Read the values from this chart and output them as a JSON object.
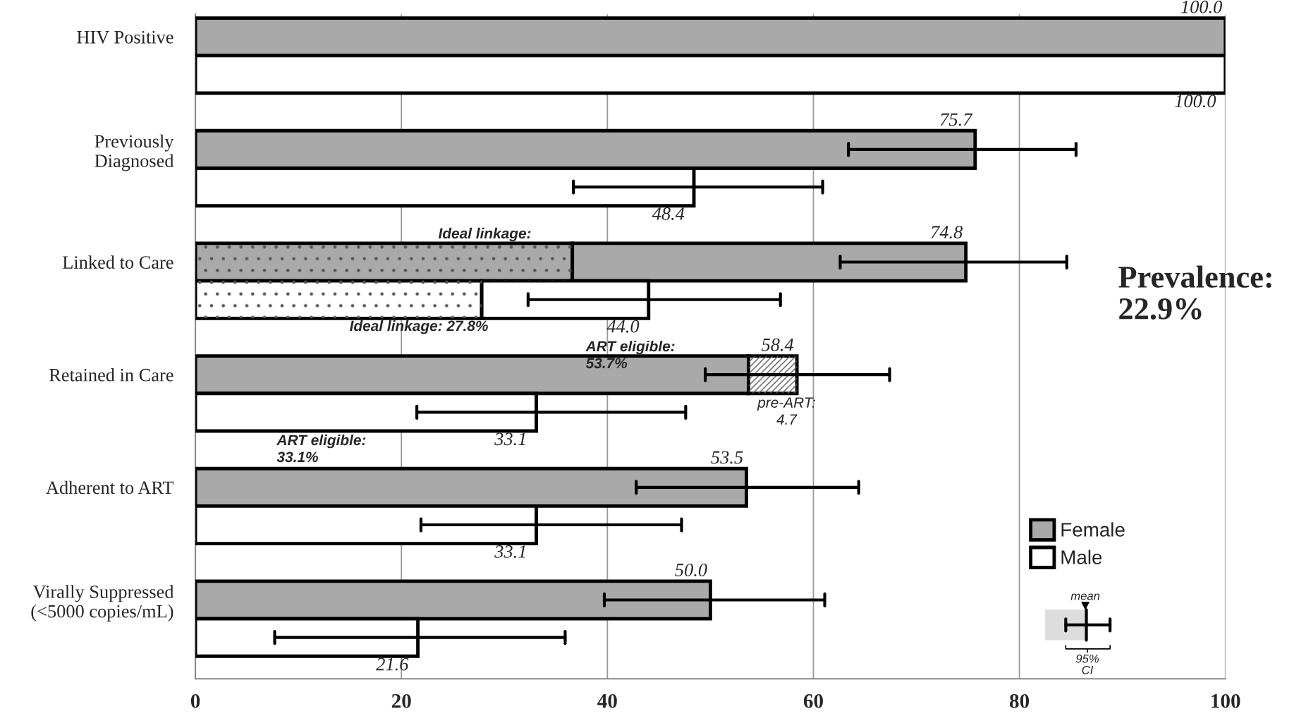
{
  "chart_data": {
    "type": "bar",
    "orientation": "horizontal",
    "stacked": true,
    "categories": [
      "HIV Positive",
      null,
      null,
      "Previously\nDiagnosed",
      null,
      null,
      "Linked to Care",
      null,
      null,
      "Retained in Care",
      null,
      null,
      "Adherent to ART",
      null,
      null,
      "Virally Suppressed\n(<5000 copies/mL)",
      null,
      null
    ],
    "series": [
      {
        "colors": [
          null,
          null,
          null,
          null,
          null,
          null,
          "#a9a9a9",
          "#ffffff",
          null,
          null,
          null,
          null,
          null,
          null,
          null,
          null,
          null,
          null
        ],
        "values": [
          null,
          null,
          null,
          null,
          null,
          null,
          36.6,
          27.8,
          null,
          null,
          null,
          null,
          null,
          null,
          null,
          null,
          null,
          null
        ]
      },
      {
        "name": "Female",
        "color": "#a9a9a9",
        "values": [
          100.0,
          null,
          null,
          75.7,
          null,
          null,
          38.2,
          null,
          null,
          53.7,
          null,
          null,
          53.5,
          null,
          null,
          50.0,
          null,
          null
        ],
        "errors": [
          null,
          null,
          null,
          [
            63.4,
            85.5
          ],
          null,
          null,
          [
            62.6,
            84.6
          ],
          null,
          null,
          [
            49.5,
            67.4
          ],
          null,
          null,
          [
            42.8,
            64.4
          ],
          null,
          null,
          [
            39.7,
            61.1
          ],
          null,
          null
        ]
      },
      {
        "name": "Male",
        "color": "#ffffff",
        "values": [
          null,
          100.0,
          null,
          null,
          48.4,
          null,
          null,
          16.2,
          null,
          null,
          33.1,
          null,
          null,
          33.1,
          null,
          null,
          21.6,
          null
        ],
        "errors": [
          null,
          null,
          null,
          null,
          [
            36.7,
            60.9
          ],
          null,
          null,
          [
            32.3,
            56.8
          ],
          null,
          null,
          [
            21.5,
            47.6
          ],
          null,
          null,
          [
            21.9,
            47.2
          ],
          null,
          null,
          [
            7.7,
            35.9
          ],
          null
        ]
      },
      {
        "color": "#ffffff",
        "values": [
          null,
          null,
          null,
          null,
          null,
          null,
          null,
          null,
          null,
          4.7,
          null,
          null,
          null,
          null,
          null,
          null,
          null,
          null
        ]
      }
    ],
    "totals": [
      "100.0",
      "100.0",
      null,
      "75.7",
      "48.4",
      null,
      "74.8",
      "44.0",
      null,
      "58.4",
      "33.1",
      null,
      "53.5",
      "33.1",
      null,
      "50.0",
      "21.6",
      null
    ],
    "xlim": [
      0,
      100
    ],
    "xticks": [
      0,
      20,
      40,
      60,
      80,
      100
    ],
    "grid": "x",
    "legend": "bottom right",
    "annotations": [
      "Ideal linkage:",
      "Ideal linkage: 27.8%",
      "ART eligible:\n53.7%",
      "pre-ART:\n4.7",
      "ART eligible:\n33.1%",
      "Prevalence:\n22.9%",
      "mean",
      "95%\nCI"
    ]
  }
}
